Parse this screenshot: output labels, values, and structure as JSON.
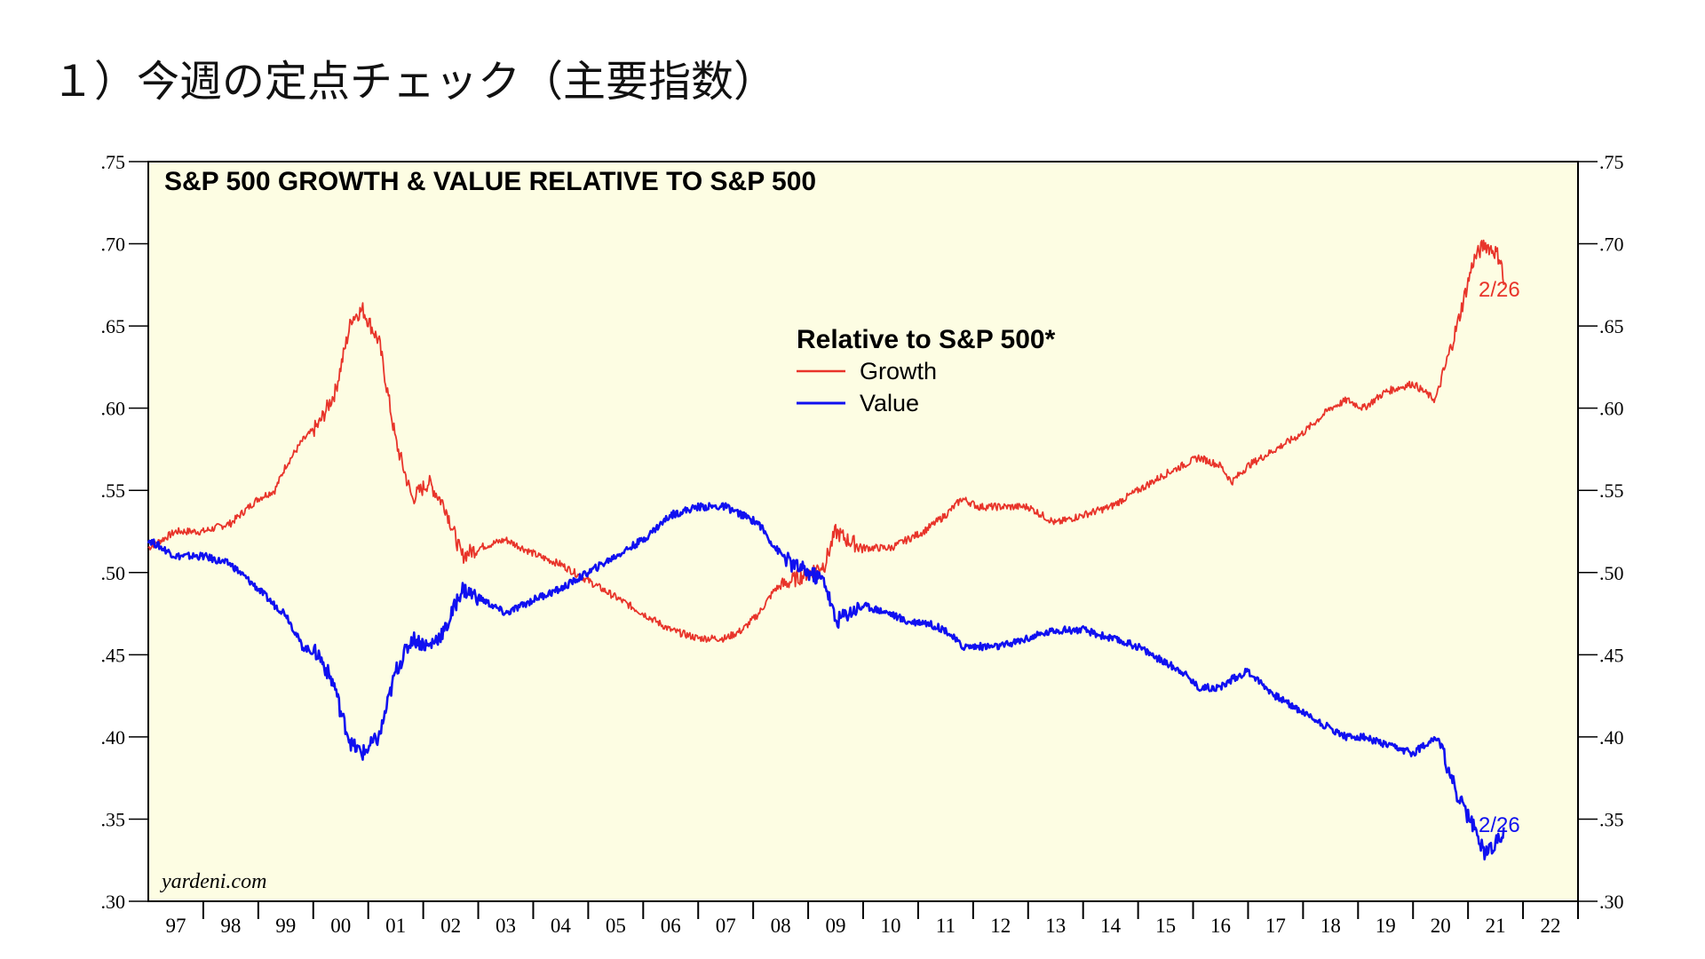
{
  "page": {
    "heading": "１）今週の定点チェック（主要指数）"
  },
  "colors": {
    "background": "#fdfde3",
    "growth": "#e8342a",
    "value": "#1010f0",
    "axis": "#000000"
  },
  "chart_data": {
    "type": "line",
    "title": "S&P 500 GROWTH & VALUE RELATIVE TO S&P 500",
    "legend": {
      "title": "Relative to S&P 500*",
      "placement": "top-center"
    },
    "source": "yardeni.com",
    "xlabel": "",
    "ylabel": "",
    "ylim": [
      0.3,
      0.75
    ],
    "xlim": [
      1996.5,
      2022.5
    ],
    "y_ticks": [
      ".75",
      ".70",
      ".65",
      ".60",
      ".55",
      ".50",
      ".45",
      ".40",
      ".35",
      ".30"
    ],
    "x_tick_labels": [
      "97",
      "98",
      "99",
      "00",
      "01",
      "02",
      "03",
      "04",
      "05",
      "06",
      "07",
      "08",
      "09",
      "10",
      "11",
      "12",
      "13",
      "14",
      "15",
      "16",
      "17",
      "18",
      "19",
      "20",
      "21",
      "22"
    ],
    "grid": false,
    "end_labels": {
      "growth": "2/26",
      "value": "2/26"
    },
    "series": [
      {
        "name": "Growth",
        "color": "#e8342a",
        "x": [
          1996.5,
          1997.0,
          1997.5,
          1998.0,
          1998.5,
          1998.8,
          1999.0,
          1999.3,
          1999.6,
          1999.9,
          2000.0,
          2000.2,
          2000.4,
          2000.7,
          2001.0,
          2001.3,
          2001.6,
          2001.9,
          2002.2,
          2002.5,
          2003.0,
          2003.3,
          2003.6,
          2004.0,
          2004.5,
          2005.0,
          2005.5,
          2006.0,
          2006.5,
          2007.0,
          2007.3,
          2007.6,
          2007.9,
          2008.2,
          2008.5,
          2008.8,
          2009.0,
          2009.2,
          2009.5,
          2010.0,
          2010.3,
          2010.6,
          2011.0,
          2011.3,
          2011.6,
          2012.0,
          2012.5,
          2013.0,
          2013.5,
          2014.0,
          2014.5,
          2015.0,
          2015.3,
          2015.6,
          2016.0,
          2016.2,
          2016.5,
          2017.0,
          2017.5,
          2018.0,
          2018.3,
          2018.6,
          2019.0,
          2019.5,
          2019.9,
          2020.0,
          2020.3,
          2020.6,
          2020.8,
          2021.0,
          2021.1,
          2021.15
        ],
        "values": [
          0.515,
          0.525,
          0.525,
          0.53,
          0.545,
          0.55,
          0.565,
          0.58,
          0.59,
          0.61,
          0.625,
          0.655,
          0.66,
          0.64,
          0.58,
          0.545,
          0.555,
          0.54,
          0.51,
          0.515,
          0.52,
          0.515,
          0.51,
          0.505,
          0.495,
          0.485,
          0.475,
          0.465,
          0.46,
          0.46,
          0.465,
          0.475,
          0.49,
          0.495,
          0.5,
          0.505,
          0.525,
          0.52,
          0.515,
          0.515,
          0.52,
          0.525,
          0.535,
          0.545,
          0.54,
          0.54,
          0.54,
          0.53,
          0.535,
          0.54,
          0.55,
          0.56,
          0.565,
          0.57,
          0.565,
          0.555,
          0.565,
          0.575,
          0.585,
          0.6,
          0.605,
          0.6,
          0.61,
          0.615,
          0.605,
          0.615,
          0.65,
          0.69,
          0.7,
          0.695,
          0.69,
          0.675
        ]
      },
      {
        "name": "Value",
        "color": "#1010f0",
        "x": [
          1996.5,
          1997.0,
          1997.5,
          1998.0,
          1998.5,
          1998.8,
          1999.0,
          1999.3,
          1999.6,
          1999.9,
          2000.0,
          2000.2,
          2000.4,
          2000.7,
          2001.0,
          2001.3,
          2001.6,
          2001.9,
          2002.2,
          2002.5,
          2003.0,
          2003.3,
          2003.6,
          2004.0,
          2004.5,
          2005.0,
          2005.5,
          2006.0,
          2006.5,
          2007.0,
          2007.3,
          2007.6,
          2007.9,
          2008.2,
          2008.5,
          2008.8,
          2009.0,
          2009.2,
          2009.5,
          2010.0,
          2010.3,
          2010.6,
          2011.0,
          2011.3,
          2011.6,
          2012.0,
          2012.5,
          2013.0,
          2013.5,
          2014.0,
          2014.5,
          2015.0,
          2015.3,
          2015.6,
          2016.0,
          2016.2,
          2016.5,
          2017.0,
          2017.5,
          2018.0,
          2018.3,
          2018.6,
          2019.0,
          2019.5,
          2019.9,
          2020.0,
          2020.3,
          2020.6,
          2020.8,
          2021.0,
          2021.1,
          2021.15
        ],
        "values": [
          0.52,
          0.51,
          0.51,
          0.505,
          0.49,
          0.48,
          0.475,
          0.455,
          0.45,
          0.43,
          0.415,
          0.395,
          0.39,
          0.4,
          0.44,
          0.46,
          0.455,
          0.465,
          0.49,
          0.485,
          0.475,
          0.48,
          0.485,
          0.49,
          0.5,
          0.51,
          0.52,
          0.535,
          0.54,
          0.54,
          0.535,
          0.53,
          0.515,
          0.505,
          0.5,
          0.495,
          0.47,
          0.475,
          0.48,
          0.475,
          0.47,
          0.47,
          0.465,
          0.455,
          0.455,
          0.455,
          0.46,
          0.465,
          0.465,
          0.46,
          0.455,
          0.445,
          0.44,
          0.43,
          0.43,
          0.435,
          0.44,
          0.425,
          0.415,
          0.405,
          0.4,
          0.4,
          0.395,
          0.39,
          0.4,
          0.395,
          0.365,
          0.345,
          0.33,
          0.335,
          0.34,
          0.345
        ]
      }
    ]
  }
}
